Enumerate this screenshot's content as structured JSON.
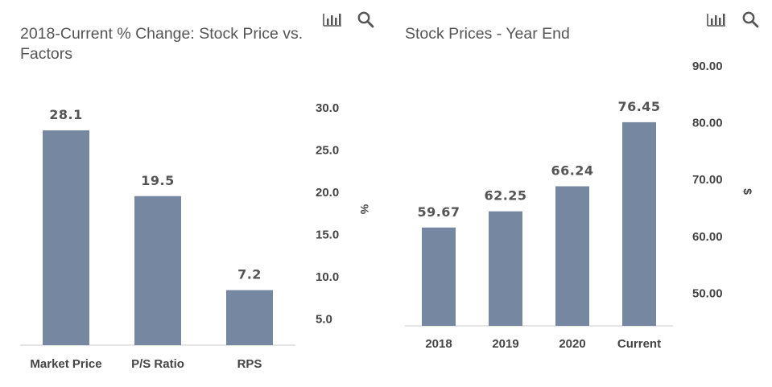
{
  "colors": {
    "bar": "#7687a2",
    "axis": "#cccccc",
    "icon": "#555555"
  },
  "icons": [
    "bar-chart-icon",
    "search-icon"
  ],
  "chart_data": [
    {
      "type": "bar",
      "title": "2018-Current % Change: Stock Price vs.",
      "title_line2": "Factors",
      "categories": [
        "Market Price",
        "P/S Ratio",
        "RPS"
      ],
      "values": [
        28.1,
        19.5,
        7.2
      ],
      "value_labels": [
        "28.1",
        "19.5",
        "7.2"
      ],
      "ylabel": "%",
      "yticks": [
        "30.0",
        "25.0",
        "20.0",
        "15.0",
        "10.0",
        "5.0"
      ],
      "ytick_values": [
        30,
        25,
        20,
        15,
        10,
        5
      ],
      "ylim": [
        0,
        30
      ],
      "y_axis_position": "right",
      "grid": false,
      "legend": "none"
    },
    {
      "type": "bar",
      "title": "Stock Prices - Year End",
      "categories": [
        "2018",
        "2019",
        "2020",
        "Current"
      ],
      "values": [
        59.67,
        62.25,
        66.24,
        76.45
      ],
      "value_labels": [
        "59.67",
        "62.25",
        "66.24",
        "76.45"
      ],
      "ylabel": "$",
      "yticks": [
        "90.00",
        "80.00",
        "70.00",
        "60.00",
        "50.00"
      ],
      "ytick_values": [
        90,
        80,
        70,
        60,
        50
      ],
      "ylim": [
        44,
        90
      ],
      "y_axis_position": "right",
      "grid": false,
      "legend": "none"
    }
  ]
}
